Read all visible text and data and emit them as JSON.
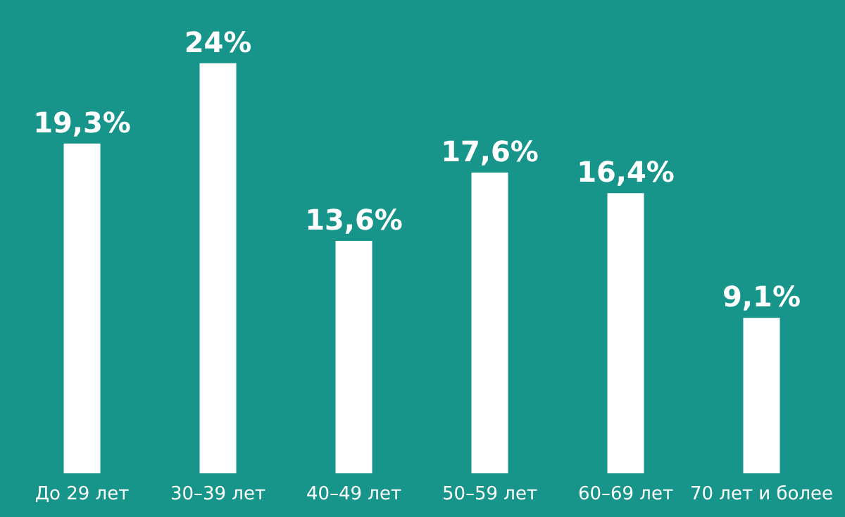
{
  "chart_data": {
    "type": "bar",
    "categories": [
      "До 29 лет",
      "30–39 лет",
      "40–49 лет",
      "50–59 лет",
      "60–69 лет",
      "70 лет и более"
    ],
    "values": [
      19.3,
      24,
      13.6,
      17.6,
      16.4,
      9.1
    ],
    "color": "#ffffff",
    "value_labels": [
      "19,3%",
      "24%",
      "13,6%",
      "17,6%",
      "16,4%",
      "9,1%"
    ],
    "grid": false
  }
}
